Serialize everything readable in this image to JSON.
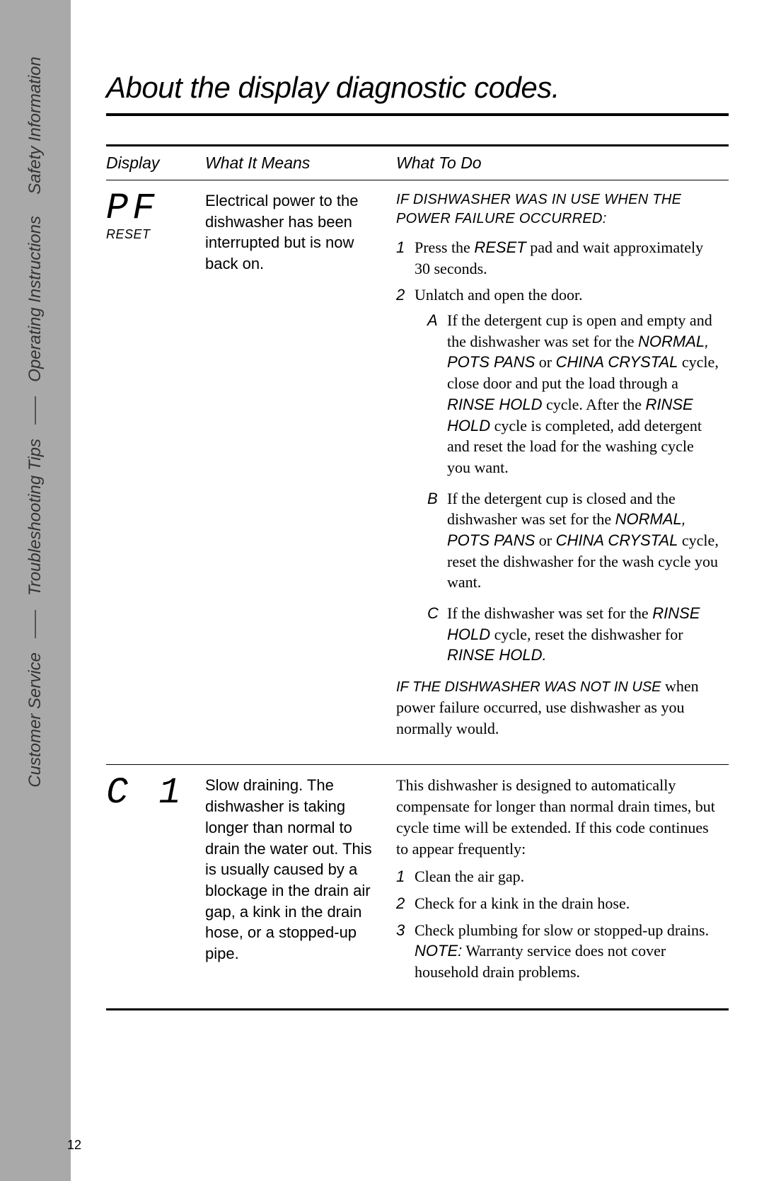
{
  "sidebar": {
    "sections": [
      "Safety Information",
      "Operating Instructions",
      "Troubleshooting Tips",
      "Customer Service"
    ]
  },
  "page": {
    "title": "About the display diagnostic codes.",
    "number": "12"
  },
  "table": {
    "headers": {
      "display": "Display",
      "means": "What It Means",
      "todo": "What To Do"
    },
    "rows": [
      {
        "code": "PF",
        "code_sub": "RESET",
        "means": "Electrical power to the dishwasher has been interrupted but is now back on.",
        "todo": {
          "head1": "IF DISHWASHER WAS IN USE WHEN THE POWER FAILURE OCCURRED:",
          "steps": [
            {
              "pre": "Press the ",
              "kw": "RESET",
              "post": " pad and wait approximately 30 seconds."
            },
            {
              "pre": "Unlatch and open the door.",
              "kw": "",
              "post": ""
            }
          ],
          "substeps": [
            "If the detergent cup is open and empty and the dishwasher was set for the <em class='kw'>NORMAL, POTS PANS</em> or <em class='kw'>CHINA CRYSTAL</em> cycle, close door and put the load through a <em class='kw'>RINSE HOLD</em> cycle. After the <em class='kw'>RINSE HOLD</em> cycle is completed, add detergent and reset the load for the washing cycle you want.",
            "If the detergent cup is closed and the dishwasher was set for the <em class='kw'>NORMAL, POTS PANS</em> or <em class='kw'>CHINA CRYSTAL</em> cycle, reset the dishwasher for the wash cycle you want.",
            "If the dishwasher was set for the <em class='kw'>RINSE HOLD</em> cycle, reset the dishwasher for <em class='kw'>RINSE HOLD.</em>"
          ],
          "head2": "IF THE DISHWASHER WAS NOT IN USE",
          "head2_cont": "when power failure occurred, use dishwasher as you normally would."
        }
      },
      {
        "code": "C 1",
        "code_sub": "",
        "means": "Slow draining. The dishwasher is taking longer than normal to drain the water out. This is usually caused by a blockage in the drain air gap, a kink in the drain hose, or a stopped-up pipe.",
        "todo": {
          "intro": "This dishwasher is designed to automatically compensate for longer than normal drain times, but cycle time will be extended. If this code continues to appear frequently:",
          "steps2": [
            "Clean the air gap.",
            "Check for a kink in the drain hose.",
            "Check plumbing for slow or stopped-up drains."
          ],
          "note_kw": "NOTE:",
          "note": " Warranty service does not cover household drain problems."
        }
      }
    ]
  }
}
